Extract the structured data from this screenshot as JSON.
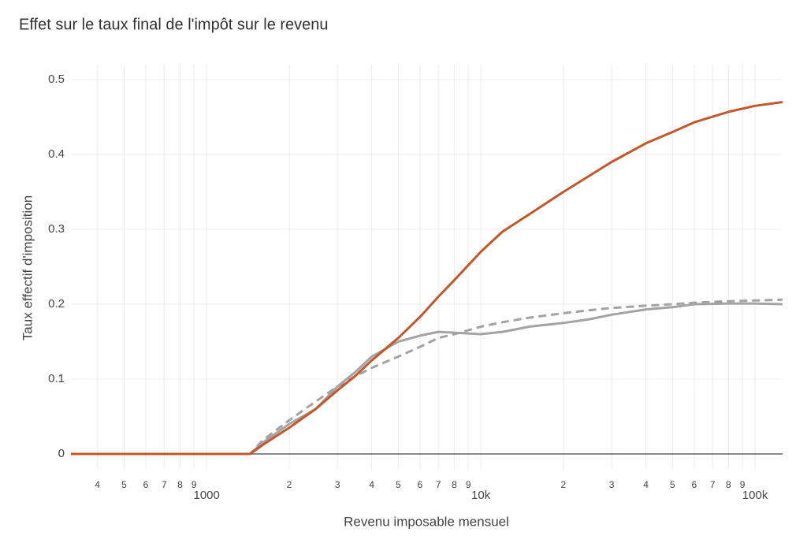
{
  "chart_data": {
    "type": "line",
    "title": "Effet sur le taux final de l'impôt sur le revenu",
    "x_label": "Revenu imposable mensuel",
    "y_label": "Taux effectif d'imposition",
    "xscale": "log",
    "grid": true,
    "xlim": [
      320,
      126000
    ],
    "ylim": [
      -0.02,
      0.52
    ],
    "xticks": [
      {
        "value": 400,
        "label": "4"
      },
      {
        "value": 500,
        "label": "5"
      },
      {
        "value": 600,
        "label": "6"
      },
      {
        "value": 700,
        "label": "7"
      },
      {
        "value": 800,
        "label": "8"
      },
      {
        "value": 900,
        "label": "9"
      },
      1000,
      {
        "value": 2000,
        "label": "2"
      },
      {
        "value": 3000,
        "label": "3"
      },
      {
        "value": 4000,
        "label": "4"
      },
      {
        "value": 5000,
        "label": "5"
      },
      {
        "value": 6000,
        "label": "6"
      },
      {
        "value": 7000,
        "label": "7"
      },
      {
        "value": 8000,
        "label": "8"
      },
      {
        "value": 9000,
        "label": "9"
      },
      {
        "value": 10000,
        "label": "10k"
      },
      {
        "value": 20000,
        "label": "2"
      },
      {
        "value": 30000,
        "label": "3"
      },
      {
        "value": 40000,
        "label": "4"
      },
      {
        "value": 50000,
        "label": "5"
      },
      {
        "value": 60000,
        "label": "6"
      },
      {
        "value": 70000,
        "label": "7"
      },
      {
        "value": 80000,
        "label": "8"
      },
      {
        "value": 90000,
        "label": "9"
      },
      {
        "value": 100000,
        "label": "100k"
      }
    ],
    "yticks": [
      0,
      0.1,
      0.2,
      0.3,
      0.4,
      0.5
    ],
    "x": [
      320,
      1000,
      1440,
      1600,
      2000,
      2500,
      3000,
      3500,
      4000,
      5000,
      6000,
      7000,
      8000,
      10000,
      12000,
      15000,
      20000,
      25000,
      30000,
      40000,
      50000,
      60000,
      80000,
      100000,
      126000
    ],
    "series": [
      {
        "color": "#c1582b",
        "dash": "solid",
        "values": [
          0,
          0,
          0,
          0.012,
          0.035,
          0.06,
          0.085,
          0.105,
          0.125,
          0.155,
          0.183,
          0.21,
          0.232,
          0.27,
          0.297,
          0.32,
          0.35,
          0.372,
          0.39,
          0.415,
          0.43,
          0.443,
          0.457,
          0.465,
          0.47
        ]
      },
      {
        "color": "#a3a3a3",
        "dash": "solid",
        "values": [
          0,
          0,
          0,
          0.015,
          0.04,
          0.06,
          0.09,
          0.11,
          0.13,
          0.15,
          0.158,
          0.163,
          0.162,
          0.16,
          0.163,
          0.17,
          0.175,
          0.18,
          0.186,
          0.193,
          0.196,
          0.2,
          0.201,
          0.201,
          0.2
        ]
      },
      {
        "color": "#a3a3a3",
        "dash": "dash",
        "values": [
          0,
          0,
          0,
          0.018,
          0.045,
          0.07,
          0.09,
          0.104,
          0.115,
          0.13,
          0.143,
          0.155,
          0.16,
          0.17,
          0.176,
          0.182,
          0.188,
          0.192,
          0.195,
          0.198,
          0.2,
          0.202,
          0.204,
          0.205,
          0.206
        ]
      }
    ]
  }
}
